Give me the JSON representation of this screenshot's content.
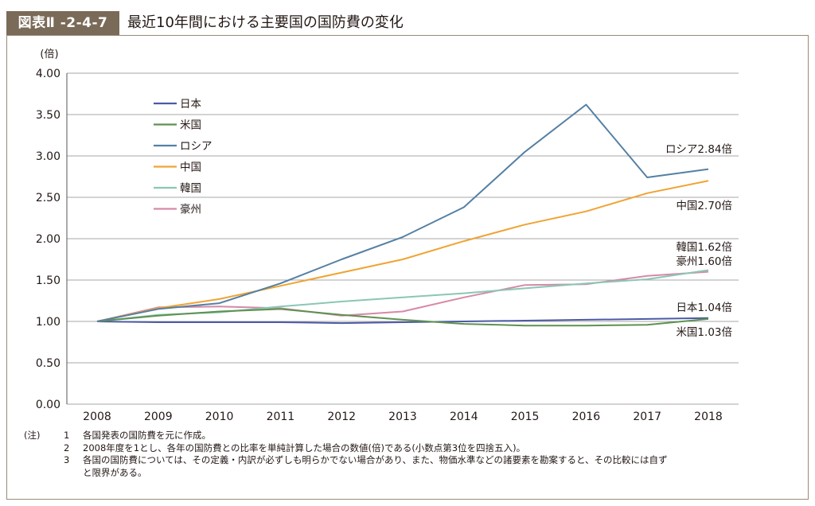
{
  "figure": {
    "badge": "図表Ⅱ -2-4-7",
    "title": "最近10年間における主要国の国防費の変化"
  },
  "chart_data": {
    "type": "line",
    "y_unit": "(倍)",
    "ylim": [
      0,
      4
    ],
    "y_ticks": [
      "0.00",
      "0.50",
      "1.00",
      "1.50",
      "2.00",
      "2.50",
      "3.00",
      "3.50",
      "4.00"
    ],
    "grid": true,
    "legend_position": "top-left",
    "categories": [
      "2008",
      "2009",
      "2010",
      "2011",
      "2012",
      "2013",
      "2014",
      "2015",
      "2016",
      "2017",
      "2018"
    ],
    "series": [
      {
        "name": "日本",
        "color": "#4c5aa6",
        "values": [
          1.0,
          0.99,
          0.99,
          0.99,
          0.98,
          0.99,
          1.0,
          1.01,
          1.02,
          1.03,
          1.04
        ]
      },
      {
        "name": "米国",
        "color": "#5e9150",
        "values": [
          1.0,
          1.07,
          1.12,
          1.15,
          1.08,
          1.02,
          0.97,
          0.95,
          0.95,
          0.96,
          1.03
        ]
      },
      {
        "name": "ロシア",
        "color": "#5480a4",
        "values": [
          1.0,
          1.15,
          1.22,
          1.46,
          1.75,
          2.02,
          2.38,
          3.05,
          3.62,
          2.74,
          2.84
        ]
      },
      {
        "name": "中国",
        "color": "#f0a332",
        "values": [
          1.0,
          1.16,
          1.27,
          1.43,
          1.59,
          1.75,
          1.97,
          2.17,
          2.33,
          2.55,
          2.7
        ]
      },
      {
        "name": "韓国",
        "color": "#8bc6b5",
        "values": [
          1.0,
          1.08,
          1.11,
          1.18,
          1.24,
          1.29,
          1.34,
          1.4,
          1.46,
          1.51,
          1.62
        ]
      },
      {
        "name": "豪州",
        "color": "#d58aa8",
        "values": [
          1.0,
          1.17,
          1.18,
          1.16,
          1.07,
          1.12,
          1.29,
          1.44,
          1.45,
          1.55,
          1.6
        ]
      }
    ],
    "end_labels": [
      "ロシア2.84倍",
      "中国2.70倍",
      "韓国1.62倍",
      "豪州1.60倍",
      "日本1.04倍",
      "米国1.03倍"
    ]
  },
  "notes": {
    "lead": "(注)",
    "items": [
      {
        "num": "1",
        "text": "各国発表の国防費を元に作成。"
      },
      {
        "num": "2",
        "text": "2008年度を1とし、各年の国防費との比率を単純計算した場合の数値(倍)である(小数点第3位を四捨五入)。"
      },
      {
        "num": "3",
        "text": "各国の国防費については、その定義・内訳が必ずしも明らかでない場合があり、また、物価水準などの諸要素を勘案すると、その比較には自ず"
      },
      {
        "num": "",
        "text": "と限界がある。"
      }
    ]
  }
}
